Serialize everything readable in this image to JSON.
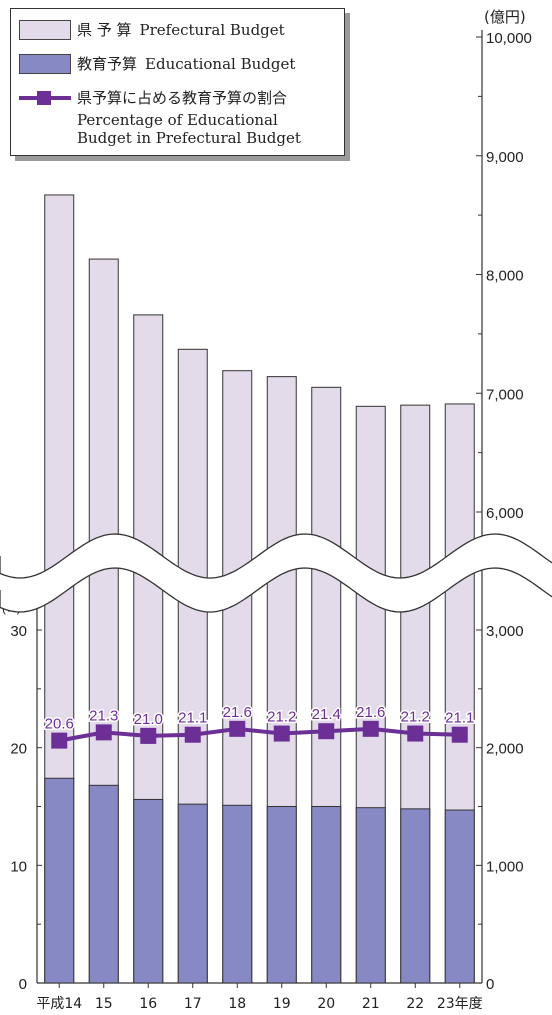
{
  "chart_data": {
    "type": "bar",
    "categories": [
      "平成14",
      "15",
      "16",
      "17",
      "18",
      "19",
      "20",
      "21",
      "22",
      "23年度"
    ],
    "series": [
      {
        "name": "県予算 Prefectural Budget",
        "values": [
          8670,
          8130,
          7660,
          7370,
          7190,
          7140,
          7050,
          6890,
          6900,
          6910
        ],
        "color": "#e3daea"
      },
      {
        "name": "教育予算 Educational Budget",
        "values": [
          1740,
          1680,
          1560,
          1520,
          1510,
          1500,
          1500,
          1490,
          1480,
          1470
        ],
        "color": "#8689c4"
      },
      {
        "name": "県予算に占める教育予算の割合",
        "values": [
          20.6,
          21.3,
          21.0,
          21.1,
          21.6,
          21.2,
          21.4,
          21.6,
          21.2,
          21.1
        ],
        "color": "#6b2f96",
        "axis": "left"
      }
    ],
    "right_axis": {
      "unit": "(億円)",
      "ticks": [
        "0",
        "1,000",
        "2,000",
        "3,000",
        "6,000",
        "7,000",
        "8,000",
        "9,000",
        "10,000"
      ],
      "break": "3,000–6,000"
    },
    "left_axis": {
      "unit": "(%)",
      "ticks": [
        "0",
        "10",
        "20",
        "30"
      ],
      "range": [
        0,
        30
      ]
    }
  },
  "legend": {
    "pref_jp": "県 予 算",
    "pref_en": "Prefectural Budget",
    "edu_jp": "教育予算",
    "edu_en": "Educational Budget",
    "ratio_jp": "県予算に占める教育予算の割合",
    "ratio_en_1": "Percentage of Educational",
    "ratio_en_2": "Budget in Prefectural Budget"
  }
}
